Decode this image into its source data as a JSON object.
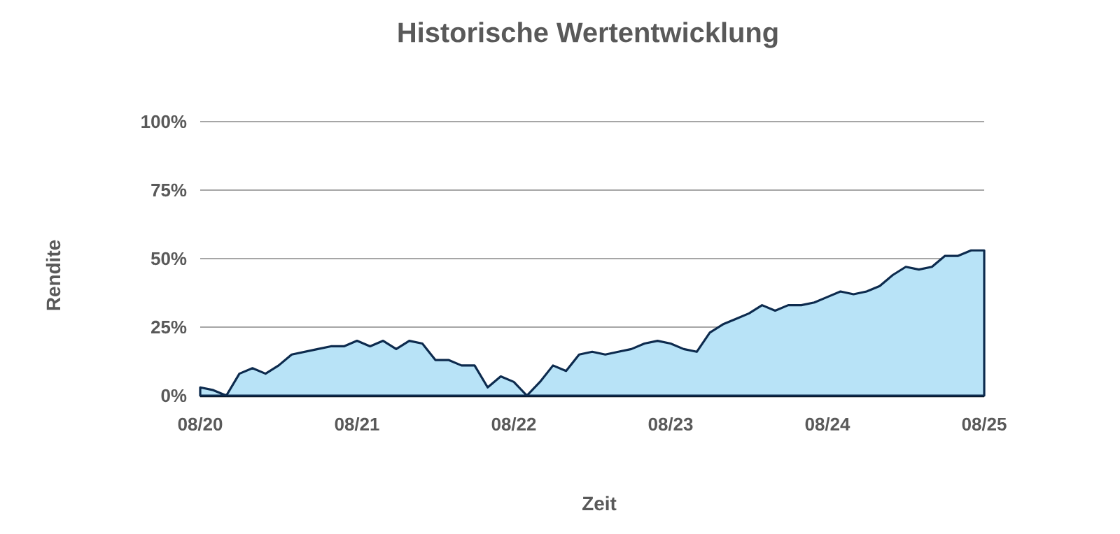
{
  "chart_data": {
    "type": "area",
    "title": "Historische Wertentwicklung",
    "xlabel": "Zeit",
    "ylabel": "Rendite",
    "x": [
      "2020-08",
      "2020-09",
      "2020-10",
      "2020-11",
      "2020-12",
      "2021-01",
      "2021-02",
      "2021-03",
      "2021-04",
      "2021-05",
      "2021-06",
      "2021-07",
      "2021-08",
      "2021-09",
      "2021-10",
      "2021-11",
      "2021-12",
      "2022-01",
      "2022-02",
      "2022-03",
      "2022-04",
      "2022-05",
      "2022-06",
      "2022-07",
      "2022-08",
      "2022-09",
      "2022-10",
      "2022-11",
      "2022-12",
      "2023-01",
      "2023-02",
      "2023-03",
      "2023-04",
      "2023-05",
      "2023-06",
      "2023-07",
      "2023-08",
      "2023-09",
      "2023-10",
      "2023-11",
      "2023-12",
      "2024-01",
      "2024-02",
      "2024-03",
      "2024-04",
      "2024-05",
      "2024-06",
      "2024-07",
      "2024-08",
      "2024-09",
      "2024-10",
      "2024-11",
      "2024-12",
      "2025-01",
      "2025-02",
      "2025-03",
      "2025-04",
      "2025-05",
      "2025-06",
      "2025-07",
      "2025-08"
    ],
    "series": [
      {
        "color": "#b8e3f7",
        "values": [
          3,
          2,
          0,
          8,
          10,
          8,
          11,
          15,
          16,
          17,
          18,
          18,
          20,
          18,
          20,
          17,
          20,
          19,
          13,
          13,
          11,
          11,
          3,
          7,
          5,
          0,
          5,
          11,
          9,
          15,
          16,
          15,
          16,
          17,
          19,
          20,
          19,
          17,
          16,
          23,
          26,
          28,
          30,
          33,
          31,
          33,
          33,
          34,
          36,
          38,
          37,
          38,
          40,
          44,
          47,
          46,
          47,
          51,
          51,
          53,
          53
        ]
      }
    ],
    "xlim": [
      "2020-08",
      "2025-08"
    ],
    "xticks": [
      {
        "value": "2020-08",
        "label": "08/20"
      },
      {
        "value": "2021-08",
        "label": "08/21"
      },
      {
        "value": "2022-08",
        "label": "08/22"
      },
      {
        "value": "2023-08",
        "label": "08/23"
      },
      {
        "value": "2024-08",
        "label": "08/24"
      },
      {
        "value": "2025-08",
        "label": "08/25"
      }
    ],
    "ylim": [
      0,
      100
    ],
    "yticks": [
      {
        "value": 0,
        "label": "0%"
      },
      {
        "value": 25,
        "label": "25%"
      },
      {
        "value": 50,
        "label": "50%"
      },
      {
        "value": 75,
        "label": "75%"
      },
      {
        "value": 100,
        "label": "100%"
      }
    ],
    "grid": "y",
    "marker": "none",
    "line_style": "solid"
  }
}
